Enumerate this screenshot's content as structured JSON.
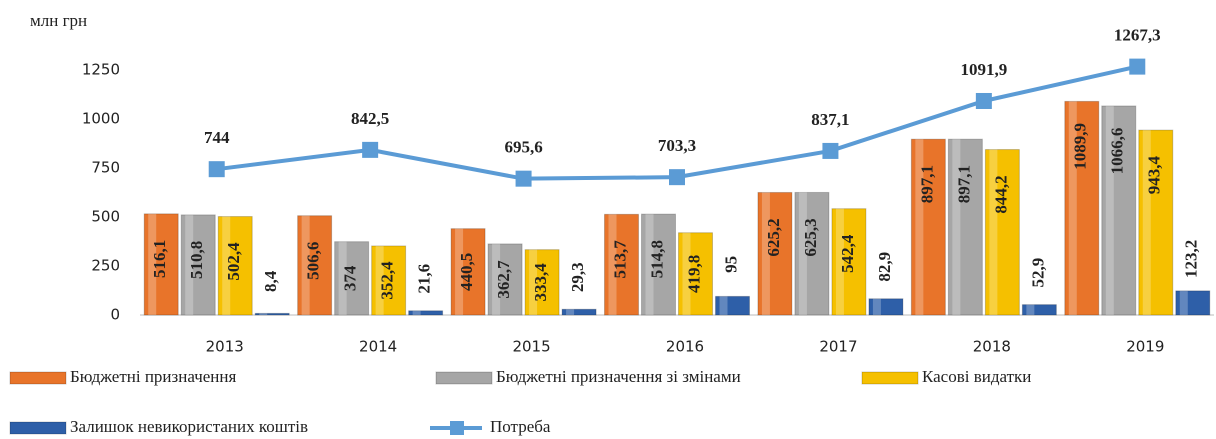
{
  "chart_data": {
    "type": "bar",
    "y_label": "млн грн",
    "categories": [
      "2013",
      "2014",
      "2015",
      "2016",
      "2017",
      "2018",
      "2019"
    ],
    "series": [
      {
        "name": "Бюджетні призначення",
        "color": "#e8742a",
        "values": [
          516.1,
          506.6,
          440.5,
          513.7,
          625.2,
          897.1,
          1089.9
        ],
        "value_labels": [
          "516,1",
          "506,6",
          "440,5",
          "513,7",
          "625,2",
          "897,1",
          "1089,9"
        ]
      },
      {
        "name": "Бюджетні призначення зі змінами",
        "color": "#a6a6a6",
        "values": [
          510.8,
          374,
          362.7,
          514.8,
          625.3,
          897.1,
          1066.6
        ],
        "value_labels": [
          "510,8",
          "374",
          "362,7",
          "514,8",
          "625,3",
          "897,1",
          "1066,6"
        ]
      },
      {
        "name": "Касові видатки",
        "color": "#f5c000",
        "values": [
          502.4,
          352.4,
          333.4,
          419.8,
          542.4,
          844.2,
          943.4
        ],
        "value_labels": [
          "502,4",
          "352,4",
          "333,4",
          "419,8",
          "542,4",
          "844,2",
          "943,4"
        ]
      },
      {
        "name": "Залишок невикористаних коштів",
        "color": "#2e5fa8",
        "values": [
          8.4,
          21.6,
          29.3,
          95,
          82.9,
          52.9,
          123.2
        ],
        "value_labels": [
          "8,4",
          "21,6",
          "29,3",
          "95",
          "82,9",
          "52,9",
          "123,2"
        ]
      },
      {
        "name": "Потреба",
        "color": "#5b9bd5",
        "type": "line",
        "values": [
          744,
          842.5,
          695.6,
          703.3,
          837.1,
          1091.9,
          1267.3
        ],
        "value_labels": [
          "744",
          "842,5",
          "695,6",
          "703,3",
          "837,1",
          "1091,9",
          "1267,3"
        ]
      }
    ],
    "ylim": [
      0,
      1250
    ],
    "yticks": [
      0,
      250,
      500,
      750,
      1000,
      1250
    ],
    "grid": false,
    "legend": "bottom"
  }
}
